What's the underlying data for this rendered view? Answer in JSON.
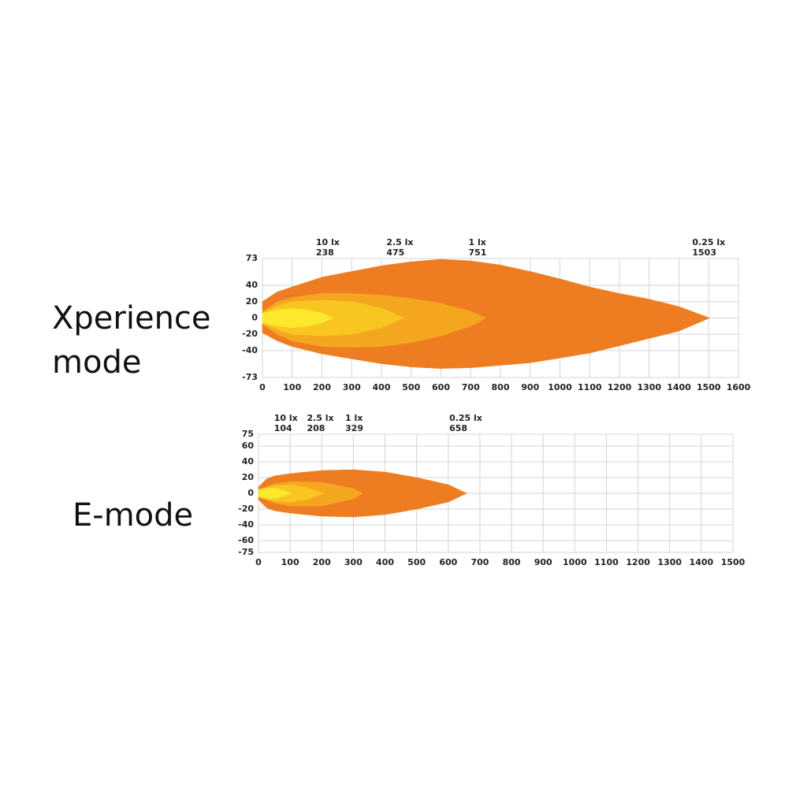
{
  "chart_data": [
    {
      "type": "beam",
      "title": "Xperience mode",
      "xlim": [
        0,
        1600
      ],
      "xticks": [
        0,
        100,
        200,
        300,
        400,
        500,
        600,
        700,
        800,
        900,
        1000,
        1100,
        1200,
        1300,
        1400,
        1500,
        1600
      ],
      "ylim": [
        -73,
        73
      ],
      "yticks": [
        -73,
        -40,
        -20,
        0,
        20,
        40,
        73
      ],
      "grid": true,
      "series": [
        {
          "name": "10 lx",
          "distance": 238,
          "color": "#fde82c",
          "x": [
            0,
            50,
            100,
            150,
            200,
            238
          ],
          "upper": [
            6,
            10,
            12,
            10,
            6,
            0
          ],
          "lower": [
            -6,
            -10,
            -12,
            -10,
            -6,
            0
          ]
        },
        {
          "name": "2.5 lx",
          "distance": 475,
          "color": "#f8c521",
          "x": [
            0,
            50,
            100,
            200,
            300,
            400,
            475
          ],
          "upper": [
            6,
            15,
            20,
            22,
            20,
            12,
            0
          ],
          "lower": [
            -6,
            -15,
            -20,
            -22,
            -20,
            -12,
            0
          ]
        },
        {
          "name": "1 lx",
          "distance": 751,
          "color": "#f5a61f",
          "x": [
            0,
            50,
            100,
            200,
            300,
            400,
            500,
            600,
            700,
            751
          ],
          "upper": [
            8,
            20,
            25,
            30,
            30,
            28,
            24,
            18,
            8,
            0
          ],
          "lower": [
            -8,
            -20,
            -28,
            -35,
            -36,
            -35,
            -30,
            -22,
            -10,
            0
          ]
        },
        {
          "name": "0.25 lx",
          "distance": 1503,
          "color": "#ee7d22",
          "x": [
            0,
            50,
            100,
            200,
            300,
            400,
            500,
            600,
            700,
            800,
            900,
            1000,
            1100,
            1200,
            1300,
            1400,
            1503
          ],
          "upper": [
            20,
            32,
            38,
            50,
            57,
            64,
            69,
            72,
            70,
            65,
            57,
            48,
            38,
            30,
            23,
            14,
            0
          ],
          "lower": [
            -18,
            -28,
            -35,
            -44,
            -50,
            -56,
            -60,
            -62,
            -61,
            -58,
            -55,
            -49,
            -43,
            -34,
            -25,
            -16,
            0
          ]
        }
      ]
    },
    {
      "type": "beam",
      "title": "E-mode",
      "xlim": [
        0,
        1500
      ],
      "xticks": [
        0,
        100,
        200,
        300,
        400,
        500,
        600,
        700,
        800,
        900,
        1000,
        1100,
        1200,
        1300,
        1400,
        1500
      ],
      "ylim": [
        -75,
        75
      ],
      "yticks": [
        -75,
        -60,
        -40,
        -20,
        0,
        20,
        40,
        60,
        75
      ],
      "grid": true,
      "series": [
        {
          "name": "10 lx",
          "distance": 104,
          "color": "#fde82c",
          "x": [
            0,
            30,
            60,
            104
          ],
          "upper": [
            4,
            7,
            6,
            0
          ],
          "lower": [
            -4,
            -7,
            -6,
            0
          ]
        },
        {
          "name": "2.5 lx",
          "distance": 208,
          "color": "#f8c521",
          "x": [
            0,
            50,
            100,
            150,
            208
          ],
          "upper": [
            4,
            10,
            11,
            8,
            0
          ],
          "lower": [
            -4,
            -10,
            -11,
            -8,
            0
          ]
        },
        {
          "name": "1 lx",
          "distance": 329,
          "color": "#f5a61f",
          "x": [
            0,
            50,
            100,
            200,
            300,
            329
          ],
          "upper": [
            5,
            12,
            15,
            14,
            6,
            0
          ],
          "lower": [
            -5,
            -12,
            -16,
            -16,
            -7,
            0
          ]
        },
        {
          "name": "0.25 lx",
          "distance": 658,
          "color": "#ee7d22",
          "x": [
            0,
            25,
            50,
            100,
            200,
            300,
            400,
            500,
            600,
            658
          ],
          "upper": [
            8,
            18,
            22,
            25,
            29,
            30,
            27,
            20,
            11,
            0
          ],
          "lower": [
            -8,
            -18,
            -22,
            -25,
            -29,
            -30,
            -27,
            -20,
            -11,
            0
          ]
        }
      ]
    }
  ]
}
